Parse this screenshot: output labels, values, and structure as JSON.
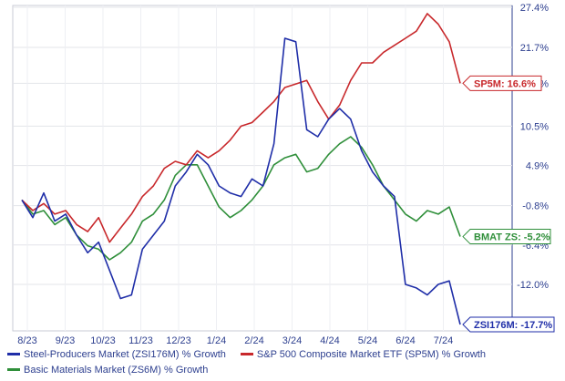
{
  "chart_data": {
    "type": "line",
    "y_unit": "%",
    "ylim": [
      -17.7,
      27.4
    ],
    "y_ticks": [
      "27.4%",
      "21.7%",
      "16.6%",
      "10.5%",
      "4.9%",
      "-0.8%",
      "-6.4%",
      "-12.0%"
    ],
    "y_tick_values": [
      27.4,
      21.7,
      16.6,
      10.5,
      4.9,
      -0.8,
      -6.4,
      -12.0
    ],
    "x_ticks": [
      "8/23",
      "9/23",
      "10/23",
      "11/23",
      "12/23",
      "1/24",
      "2/24",
      "3/24",
      "4/24",
      "5/24",
      "6/24",
      "7/24"
    ],
    "grid": true,
    "legend_placement": "bottom",
    "series": [
      {
        "name": "Steel-Producers Market (ZSI176M) % Growth",
        "end_label": "ZSI176M: -17.7%",
        "color": "#1f2ea8",
        "values": [
          0,
          -2.5,
          1.0,
          -3.0,
          -2.0,
          -5.0,
          -7.5,
          -6.0,
          -10.0,
          -14.0,
          -13.5,
          -7.0,
          -5.0,
          -3.0,
          2.0,
          4.0,
          6.5,
          5.0,
          2.0,
          1.0,
          0.5,
          3.0,
          2.0,
          8.0,
          23.0,
          22.5,
          10.0,
          9.0,
          11.5,
          13.0,
          11.5,
          7.0,
          4.0,
          2.0,
          0.5,
          -12.0,
          -12.5,
          -13.5,
          -12.0,
          -11.5,
          -17.7
        ]
      },
      {
        "name": "S&P 500 Composite Market ETF (SP5M) % Growth",
        "end_label": "SP5M: 16.6%",
        "color": "#c8282b",
        "values": [
          0,
          -1.5,
          -0.5,
          -2.0,
          -1.5,
          -3.5,
          -4.5,
          -2.5,
          -6.0,
          -4.0,
          -2.0,
          0.5,
          2.0,
          4.5,
          5.5,
          5.0,
          7.0,
          6.0,
          7.0,
          8.5,
          10.5,
          11.0,
          12.5,
          14.0,
          16.0,
          16.5,
          17.0,
          14.0,
          11.5,
          13.5,
          17.0,
          19.5,
          19.5,
          21.0,
          22.0,
          23.0,
          24.0,
          26.5,
          25.0,
          22.5,
          16.6
        ]
      },
      {
        "name": "Basic Materials Market (ZS6M) % Growth",
        "end_label": "BMAT ZS: -5.2%",
        "color": "#2f8f3a",
        "values": [
          0,
          -2.0,
          -1.5,
          -3.5,
          -2.5,
          -5.0,
          -6.5,
          -7.0,
          -8.5,
          -7.5,
          -6.0,
          -3.0,
          -2.0,
          0,
          3.5,
          5.0,
          5.0,
          2.0,
          -1.0,
          -2.5,
          -1.5,
          0,
          2.0,
          5.0,
          6.0,
          6.5,
          4.0,
          4.5,
          6.5,
          8.0,
          9.0,
          7.5,
          5.0,
          2.0,
          0,
          -2.0,
          -3.0,
          -1.5,
          -2.0,
          -1.0,
          -5.2
        ]
      }
    ]
  }
}
